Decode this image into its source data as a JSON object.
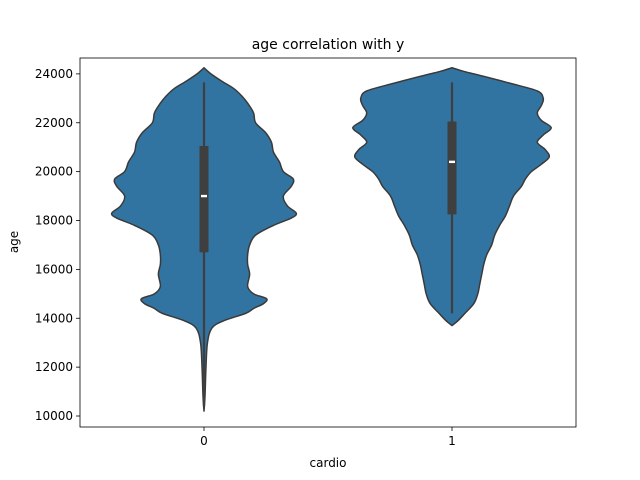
{
  "chart_data": {
    "type": "violin",
    "title": "age correlation with y",
    "xlabel": "cardio",
    "ylabel": "age",
    "categories": [
      "0",
      "1"
    ],
    "ylim": [
      9550,
      24650
    ],
    "yticks": [
      10000,
      12000,
      14000,
      16000,
      18000,
      20000,
      22000,
      24000
    ],
    "ytick_labels": [
      "10000",
      "12000",
      "14000",
      "16000",
      "18000",
      "20000",
      "22000",
      "24000"
    ],
    "fill_color": "#3274a1",
    "edge_color": "#3a3a3a",
    "box_color": "#3f3f3f",
    "grid": false,
    "series": [
      {
        "category": "0",
        "whisker_low": 10400,
        "q1": 16700,
        "median": 19000,
        "q3": 21050,
        "whisker_high": 23650,
        "density_min": 10200,
        "density_max": 24250,
        "density": [
          [
            10200,
            0.0
          ],
          [
            10800,
            0.01
          ],
          [
            12000,
            0.02
          ],
          [
            13000,
            0.035
          ],
          [
            13600,
            0.08
          ],
          [
            13900,
            0.2
          ],
          [
            14200,
            0.42
          ],
          [
            14400,
            0.5
          ],
          [
            14600,
            0.6
          ],
          [
            14800,
            0.63
          ],
          [
            15000,
            0.5
          ],
          [
            15300,
            0.44
          ],
          [
            15800,
            0.46
          ],
          [
            16200,
            0.44
          ],
          [
            16600,
            0.44
          ],
          [
            17000,
            0.46
          ],
          [
            17400,
            0.52
          ],
          [
            17800,
            0.7
          ],
          [
            18100,
            0.88
          ],
          [
            18300,
            0.93
          ],
          [
            18600,
            0.84
          ],
          [
            19000,
            0.8
          ],
          [
            19400,
            0.88
          ],
          [
            19700,
            0.9
          ],
          [
            20000,
            0.8
          ],
          [
            20400,
            0.76
          ],
          [
            20800,
            0.7
          ],
          [
            21200,
            0.68
          ],
          [
            21600,
            0.62
          ],
          [
            22000,
            0.52
          ],
          [
            22400,
            0.5
          ],
          [
            22800,
            0.44
          ],
          [
            23100,
            0.38
          ],
          [
            23400,
            0.3
          ],
          [
            23700,
            0.18
          ],
          [
            24000,
            0.07
          ],
          [
            24250,
            0.0
          ]
        ]
      },
      {
        "category": "1",
        "whisker_low": 14200,
        "q1": 18250,
        "median": 20400,
        "q3": 22050,
        "whisker_high": 23650,
        "density_min": 13700,
        "density_max": 24250,
        "density": [
          [
            13700,
            0.0
          ],
          [
            13900,
            0.06
          ],
          [
            14200,
            0.13
          ],
          [
            14600,
            0.22
          ],
          [
            15000,
            0.26
          ],
          [
            15400,
            0.28
          ],
          [
            15800,
            0.3
          ],
          [
            16200,
            0.32
          ],
          [
            16600,
            0.35
          ],
          [
            17000,
            0.4
          ],
          [
            17400,
            0.43
          ],
          [
            17800,
            0.48
          ],
          [
            18200,
            0.54
          ],
          [
            18600,
            0.58
          ],
          [
            19000,
            0.62
          ],
          [
            19400,
            0.7
          ],
          [
            19700,
            0.74
          ],
          [
            20000,
            0.8
          ],
          [
            20300,
            0.9
          ],
          [
            20600,
            0.98
          ],
          [
            20900,
            0.94
          ],
          [
            21200,
            0.86
          ],
          [
            21500,
            0.92
          ],
          [
            21800,
            1.0
          ],
          [
            22100,
            0.9
          ],
          [
            22400,
            0.86
          ],
          [
            22700,
            0.9
          ],
          [
            23000,
            0.92
          ],
          [
            23300,
            0.86
          ],
          [
            23600,
            0.6
          ],
          [
            23900,
            0.32
          ],
          [
            24100,
            0.12
          ],
          [
            24250,
            0.0
          ]
        ]
      }
    ]
  }
}
